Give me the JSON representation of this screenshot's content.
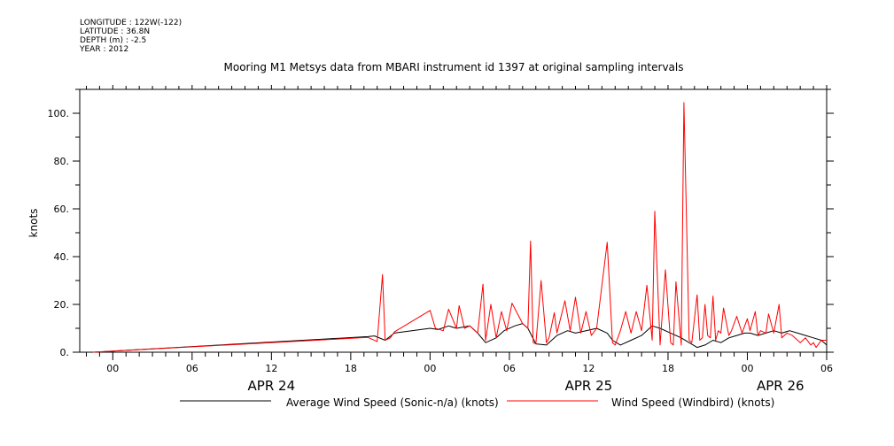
{
  "header": {
    "longitude": "LONGITUDE : 122W(-122)",
    "latitude": "LATITUDE : 36.8N",
    "depth": "DEPTH (m) : -2.5",
    "year": "YEAR : 2012"
  },
  "chart_data": {
    "type": "line",
    "title": "Mooring M1 Metsys data from MBARI instrument id 1397 at original sampling intervals",
    "ylabel": "knots",
    "xlabel": "",
    "x_unit": "hours since APR 24 00:00 (2012)",
    "xlim": [
      -2.5,
      54.0
    ],
    "ylim": [
      0,
      110
    ],
    "y_ticks": [
      0,
      20,
      40,
      60,
      80,
      100
    ],
    "y_tick_labels": [
      "0.",
      "20.",
      "40.",
      "60.",
      "80.",
      "100."
    ],
    "x_ticks": [
      0,
      6,
      12,
      18,
      24,
      30,
      36,
      42,
      48,
      54
    ],
    "x_tick_labels": [
      "00",
      "06",
      "12",
      "18",
      "00",
      "06",
      "12",
      "18",
      "00",
      "06"
    ],
    "date_labels": [
      {
        "x": 12,
        "label": "APR 24"
      },
      {
        "x": 36,
        "label": "APR 25"
      },
      {
        "x": 50.5,
        "label": "APR 26"
      }
    ],
    "grid": false,
    "legend_position": "bottom",
    "series": [
      {
        "name": "Average Wind Speed (Sonic-n/a) (knots)",
        "color": "#000000",
        "x": [
          -1.5,
          19.3,
          19.8,
          20.6,
          21.3,
          24.0,
          24.6,
          25.4,
          26.0,
          27.0,
          27.6,
          28.2,
          29.0,
          29.6,
          30.4,
          31.0,
          31.4,
          32.0,
          32.8,
          33.6,
          34.4,
          35.0,
          35.8,
          36.6,
          37.4,
          37.8,
          38.4,
          39.2,
          40.0,
          40.8,
          41.4,
          42.2,
          43.0,
          43.6,
          44.2,
          44.8,
          45.4,
          46.0,
          46.6,
          47.2,
          47.8,
          48.2,
          48.8,
          49.4,
          50.0,
          50.6,
          51.2,
          51.8,
          52.4,
          53.0,
          53.6,
          54.0
        ],
        "y": [
          0,
          6.5,
          6.8,
          5.0,
          8.0,
          10.0,
          9.5,
          11.0,
          10.0,
          11.0,
          8.0,
          4.0,
          6.0,
          9.0,
          11.0,
          12.0,
          10.0,
          3.5,
          3.0,
          7.0,
          9.0,
          8.0,
          9.0,
          10.0,
          8.0,
          5.0,
          3.0,
          5.0,
          7.0,
          11.0,
          10.0,
          8.0,
          6.0,
          4.0,
          2.0,
          3.0,
          5.0,
          4.0,
          6.0,
          7.0,
          8.0,
          8.0,
          7.0,
          8.0,
          9.0,
          8.0,
          9.0,
          8.0,
          7.0,
          6.0,
          5.0,
          3.0
        ]
      },
      {
        "name": "Wind Speed (Windbird) (knots)",
        "color": "#ff0000",
        "x": [
          -1.5,
          19.3,
          20.0,
          20.4,
          20.6,
          21.0,
          21.3,
          24.0,
          24.4,
          25.0,
          25.4,
          26.0,
          26.2,
          26.6,
          27.0,
          27.6,
          28.0,
          28.2,
          28.6,
          29.0,
          29.4,
          29.8,
          30.2,
          31.0,
          31.4,
          31.6,
          31.8,
          32.0,
          32.4,
          32.8,
          33.0,
          33.4,
          33.6,
          34.2,
          34.6,
          35.0,
          35.4,
          35.8,
          36.2,
          36.6,
          37.4,
          37.8,
          38.0,
          38.4,
          38.8,
          39.2,
          39.6,
          40.0,
          40.4,
          40.8,
          41.0,
          41.4,
          41.8,
          42.2,
          42.4,
          42.6,
          43.0,
          43.2,
          43.6,
          43.8,
          44.2,
          44.4,
          44.6,
          44.8,
          45.0,
          45.2,
          45.4,
          45.6,
          45.8,
          46.0,
          46.2,
          46.6,
          46.8,
          47.2,
          47.6,
          48.0,
          48.2,
          48.6,
          48.8,
          49.0,
          49.4,
          49.6,
          50.0,
          50.4,
          50.6,
          51.0,
          51.4,
          52.0,
          52.4,
          52.8,
          53.0,
          53.2,
          53.6,
          54.0
        ],
        "y": [
          0,
          6.2,
          4.5,
          32.5,
          5.0,
          6.0,
          8.5,
          17.5,
          10.0,
          9.0,
          18.0,
          10.0,
          19.5,
          10.0,
          11.0,
          8.0,
          28.5,
          5.0,
          20.0,
          6.0,
          17.0,
          9.0,
          20.5,
          12.0,
          10.0,
          46.5,
          4.0,
          3.5,
          30.0,
          4.0,
          6.0,
          16.5,
          8.0,
          21.5,
          9.0,
          23.0,
          8.0,
          17.0,
          7.0,
          10.0,
          46.0,
          4.0,
          3.0,
          9.0,
          17.0,
          8.0,
          17.0,
          9.0,
          28.0,
          5.0,
          59.0,
          3.0,
          34.5,
          4.0,
          3.0,
          29.5,
          3.0,
          104.5,
          5.0,
          4.0,
          24.0,
          5.0,
          6.0,
          20.0,
          7.0,
          6.0,
          23.5,
          5.0,
          9.0,
          8.0,
          18.5,
          7.0,
          9.0,
          15.0,
          8.0,
          14.0,
          9.0,
          17.0,
          7.0,
          9.0,
          8.0,
          16.0,
          8.0,
          20.0,
          6.0,
          8.0,
          7.0,
          4.0,
          6.0,
          3.0,
          4.0,
          2.0,
          5.0,
          5.0
        ]
      }
    ]
  }
}
